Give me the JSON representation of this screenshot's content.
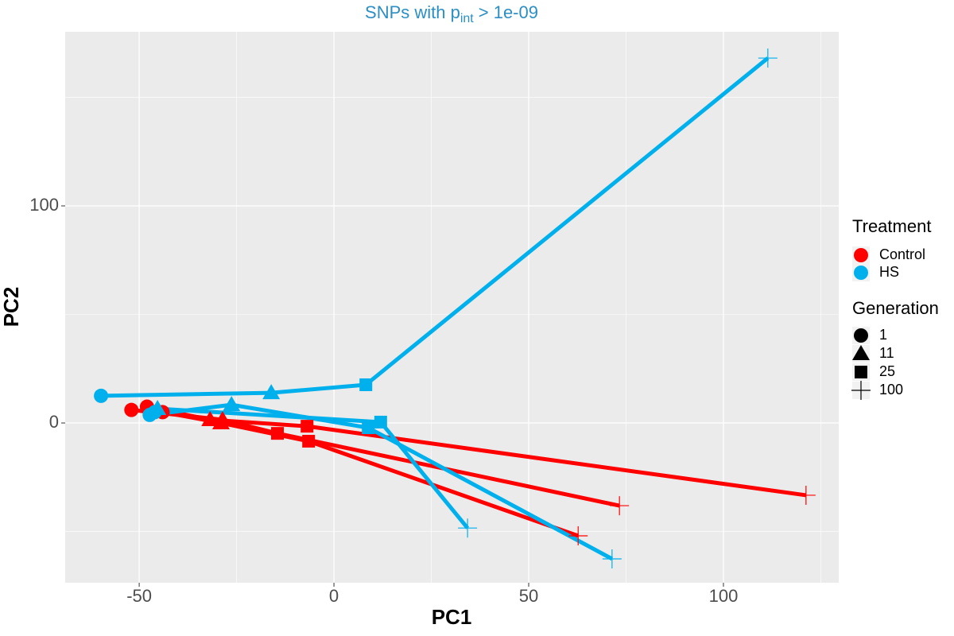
{
  "chart_data": {
    "type": "scatter",
    "title": "SNPs with p",
    "title_subscript": "int",
    "title_suffix": "> 1e-09",
    "x_label": "PC1",
    "y_label": "PC2",
    "xlim": [
      -69,
      129.6
    ],
    "ylim": [
      -73.6,
      180.2
    ],
    "xticks": [
      -50,
      0,
      50,
      100
    ],
    "yticks": [
      0,
      100
    ],
    "x_minor_ticks": [
      -25,
      25,
      75,
      125
    ],
    "y_minor_ticks": [
      -50,
      50,
      150
    ],
    "grid": true,
    "legend_position": "right",
    "treatment_title": "Treatment",
    "treatments": [
      {
        "name": "Control",
        "color": "#ff0000"
      },
      {
        "name": "HS",
        "color": "#00b0ec"
      }
    ],
    "generation_title": "Generation",
    "generations": [
      "1",
      "11",
      "25",
      "100"
    ],
    "shapes": [
      "circle",
      "triangle",
      "square",
      "cross"
    ],
    "series": [
      {
        "treatment": "Control",
        "color": "#ff0000",
        "x": [
          -48,
          -31.8,
          -6.9,
          121.2
        ],
        "y": [
          7.5,
          1.5,
          -1.5,
          -33.3
        ]
      },
      {
        "treatment": "Control",
        "color": "#ff0000",
        "x": [
          -52,
          -28.6,
          -14.5,
          73.3
        ],
        "y": [
          6,
          1.5,
          -4.8,
          -38.1
        ]
      },
      {
        "treatment": "Control",
        "color": "#ff0000",
        "x": [
          -44,
          -29,
          -6.5,
          62.7
        ],
        "y": [
          5,
          0,
          -8.4,
          -52
        ]
      },
      {
        "treatment": "HS",
        "color": "#00b0ec",
        "x": [
          -59.8,
          -16.1,
          8.2,
          111.4
        ],
        "y": [
          12.5,
          13.9,
          17.6,
          168.1
        ]
      },
      {
        "treatment": "HS",
        "color": "#00b0ec",
        "x": [
          -47.3,
          -26.3,
          8.8,
          71.4
        ],
        "y": [
          3.7,
          8.4,
          -2.2,
          -62.6
        ]
      },
      {
        "treatment": "HS",
        "color": "#00b0ec",
        "x": [
          -46,
          -45.3,
          12,
          34.3
        ],
        "y": [
          5,
          6.6,
          0.4,
          -48.4
        ]
      }
    ]
  }
}
